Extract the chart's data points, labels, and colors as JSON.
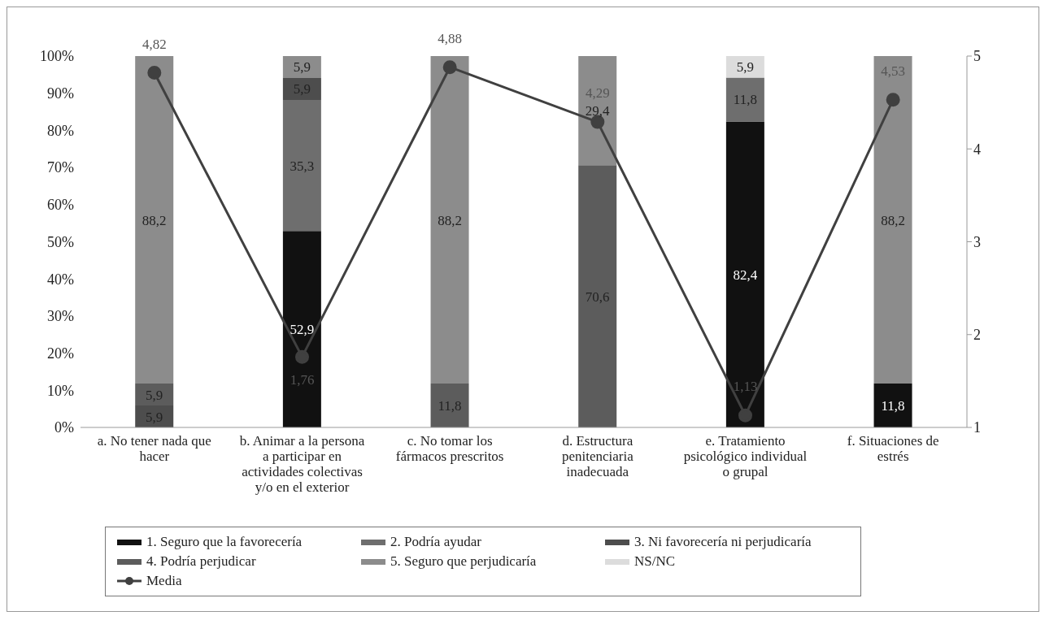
{
  "chart_data": {
    "type": "bar",
    "stacked": true,
    "categories": [
      "a. No tener nada que hacer",
      "b. Animar a la persona a participar en actividades colectivas y/o en el exterior",
      "c. No tomar los fármacos prescritos",
      "d. Estructura penitenciaria inadecuada",
      "e. Tratamiento psicológico individual o grupal",
      "f. Situaciones de estrés"
    ],
    "series": [
      {
        "name": "1. Seguro que la favorecería",
        "color": "#111111",
        "values": [
          null,
          52.9,
          null,
          null,
          82.4,
          11.8
        ],
        "value_labels": [
          null,
          "52,9",
          null,
          null,
          "82,4",
          "11,8"
        ]
      },
      {
        "name": "2. Podría ayudar",
        "color": "#6e6e6e",
        "values": [
          null,
          35.3,
          null,
          null,
          11.8,
          null
        ],
        "value_labels": [
          null,
          "35,3",
          null,
          null,
          "11,8",
          null
        ]
      },
      {
        "name": "3. Ni favorecería ni perjudicaría",
        "color": "#4d4d4d",
        "values": [
          5.9,
          5.9,
          null,
          null,
          null,
          null
        ],
        "value_labels": [
          "5,9",
          "5,9",
          null,
          null,
          null,
          null
        ]
      },
      {
        "name": "4. Podría perjudicar",
        "color": "#5c5c5c",
        "values": [
          5.9,
          null,
          11.8,
          70.6,
          null,
          null
        ],
        "value_labels": [
          "5,9",
          null,
          "11,8",
          "70,6",
          null,
          null
        ]
      },
      {
        "name": "5. Seguro que perjudicaría",
        "color": "#8c8c8c",
        "values": [
          88.2,
          5.9,
          88.2,
          29.4,
          null,
          88.2
        ],
        "value_labels": [
          "88,2",
          "5,9",
          "88,2",
          "29,4",
          null,
          "88,2"
        ]
      },
      {
        "name": "NS/NC",
        "color": "#dcdcdc",
        "values": [
          null,
          null,
          null,
          null,
          5.9,
          null
        ],
        "value_labels": [
          null,
          null,
          null,
          null,
          "5,9",
          null
        ]
      },
      {
        "name": "Media",
        "type": "line",
        "axis": "y2",
        "color": "#404040",
        "marker": "circle",
        "values": [
          4.82,
          1.76,
          4.88,
          4.29,
          1.13,
          4.53
        ],
        "value_labels": [
          "4,82",
          "1,76",
          "4,88",
          "4,29",
          "1,13",
          "4,53"
        ]
      }
    ],
    "ylim": [
      0,
      100
    ],
    "yticks": [
      {
        "value": 0,
        "label": "0%"
      },
      {
        "value": 10,
        "label": "10%"
      },
      {
        "value": 20,
        "label": "20%"
      },
      {
        "value": 30,
        "label": "30%"
      },
      {
        "value": 40,
        "label": "40%"
      },
      {
        "value": 50,
        "label": "50%"
      },
      {
        "value": 60,
        "label": "60%"
      },
      {
        "value": 70,
        "label": "70%"
      },
      {
        "value": 80,
        "label": "80%"
      },
      {
        "value": 90,
        "label": "90%"
      },
      {
        "value": 100,
        "label": "100%"
      }
    ],
    "y2lim": [
      1,
      5
    ],
    "y2ticks": [
      1,
      2,
      3,
      4,
      5
    ],
    "legend": "bottom"
  }
}
